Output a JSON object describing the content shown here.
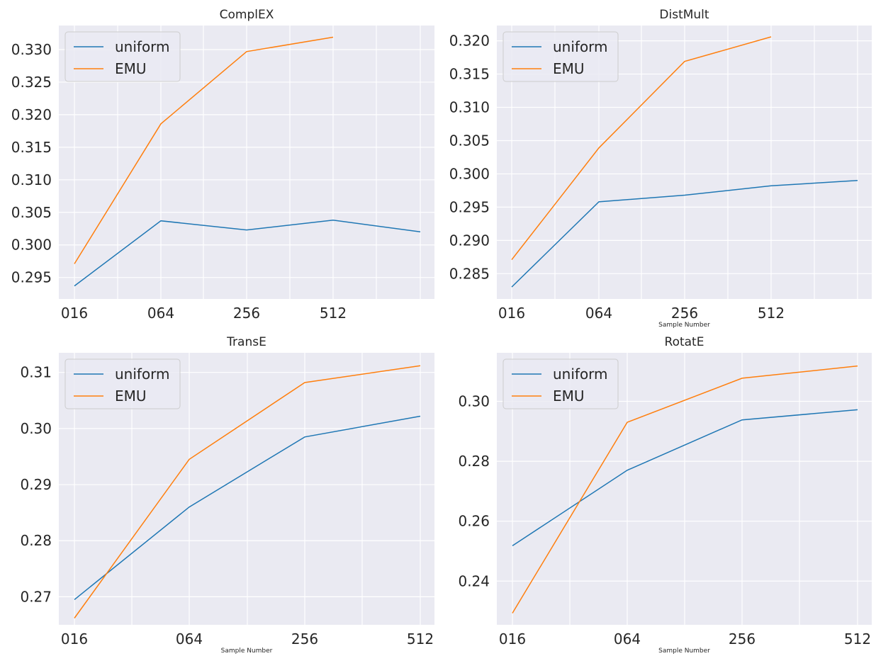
{
  "chart_data": [
    {
      "type": "line",
      "title": "ComplEX",
      "xlabel": "",
      "ylabel": "",
      "categories": [
        "016",
        "064",
        "256",
        "512",
        ""
      ],
      "ylim": [
        0.2917,
        0.3337
      ],
      "yticks": [
        0.295,
        0.3,
        0.305,
        0.31,
        0.315,
        0.32,
        0.325,
        0.33
      ],
      "ytick_labels": [
        "0.295",
        "0.300",
        "0.305",
        "0.310",
        "0.315",
        "0.320",
        "0.325",
        "0.330"
      ],
      "legend": "top-left",
      "grid": true,
      "series": [
        {
          "name": "uniform",
          "color": "#1f77b4",
          "values": [
            0.2937,
            0.3037,
            0.3023,
            0.3038,
            0.302
          ]
        },
        {
          "name": "EMU",
          "color": "#ff7f0e",
          "values": [
            0.2971,
            0.3186,
            0.3297,
            0.3319,
            null
          ]
        }
      ]
    },
    {
      "type": "line",
      "title": "DistMult",
      "xlabel": "Sample Number",
      "ylabel": "",
      "categories": [
        "016",
        "064",
        "256",
        "512",
        ""
      ],
      "ylim": [
        0.2812,
        0.3223
      ],
      "yticks": [
        0.285,
        0.29,
        0.295,
        0.3,
        0.305,
        0.31,
        0.315,
        0.32
      ],
      "ytick_labels": [
        "0.285",
        "0.290",
        "0.295",
        "0.300",
        "0.305",
        "0.310",
        "0.315",
        "0.320"
      ],
      "legend": "top-left",
      "grid": true,
      "series": [
        {
          "name": "uniform",
          "color": "#1f77b4",
          "values": [
            0.283,
            0.2958,
            0.2968,
            0.2982,
            0.299
          ]
        },
        {
          "name": "EMU",
          "color": "#ff7f0e",
          "values": [
            0.2871,
            0.3039,
            0.3169,
            0.3206,
            null
          ]
        }
      ]
    },
    {
      "type": "line",
      "title": "TransE",
      "xlabel": "Sample Number",
      "ylabel": "",
      "categories": [
        "016",
        "064",
        "256",
        "512"
      ],
      "ylim": [
        0.265,
        0.3135
      ],
      "yticks": [
        0.27,
        0.28,
        0.29,
        0.3,
        0.31
      ],
      "ytick_labels": [
        "0.27",
        "0.28",
        "0.29",
        "0.30",
        "0.31"
      ],
      "legend": "top-left",
      "grid": true,
      "series": [
        {
          "name": "uniform",
          "color": "#1f77b4",
          "values": [
            0.2695,
            0.286,
            0.2985,
            0.3022
          ]
        },
        {
          "name": "EMU",
          "color": "#ff7f0e",
          "values": [
            0.2662,
            0.2945,
            0.3082,
            0.3112
          ]
        }
      ]
    },
    {
      "type": "line",
      "title": "RotatE",
      "xlabel": "Sample Number",
      "ylabel": "",
      "categories": [
        "016",
        "064",
        "256",
        "512"
      ],
      "ylim": [
        0.2254,
        0.3162
      ],
      "yticks": [
        0.24,
        0.26,
        0.28,
        0.3
      ],
      "ytick_labels": [
        "0.24",
        "0.26",
        "0.28",
        "0.30"
      ],
      "legend": "top-left",
      "grid": true,
      "series": [
        {
          "name": "uniform",
          "color": "#1f77b4",
          "values": [
            0.2518,
            0.277,
            0.2938,
            0.2972
          ]
        },
        {
          "name": "EMU",
          "color": "#ff7f0e",
          "values": [
            0.2293,
            0.293,
            0.3077,
            0.3118
          ]
        }
      ]
    }
  ]
}
